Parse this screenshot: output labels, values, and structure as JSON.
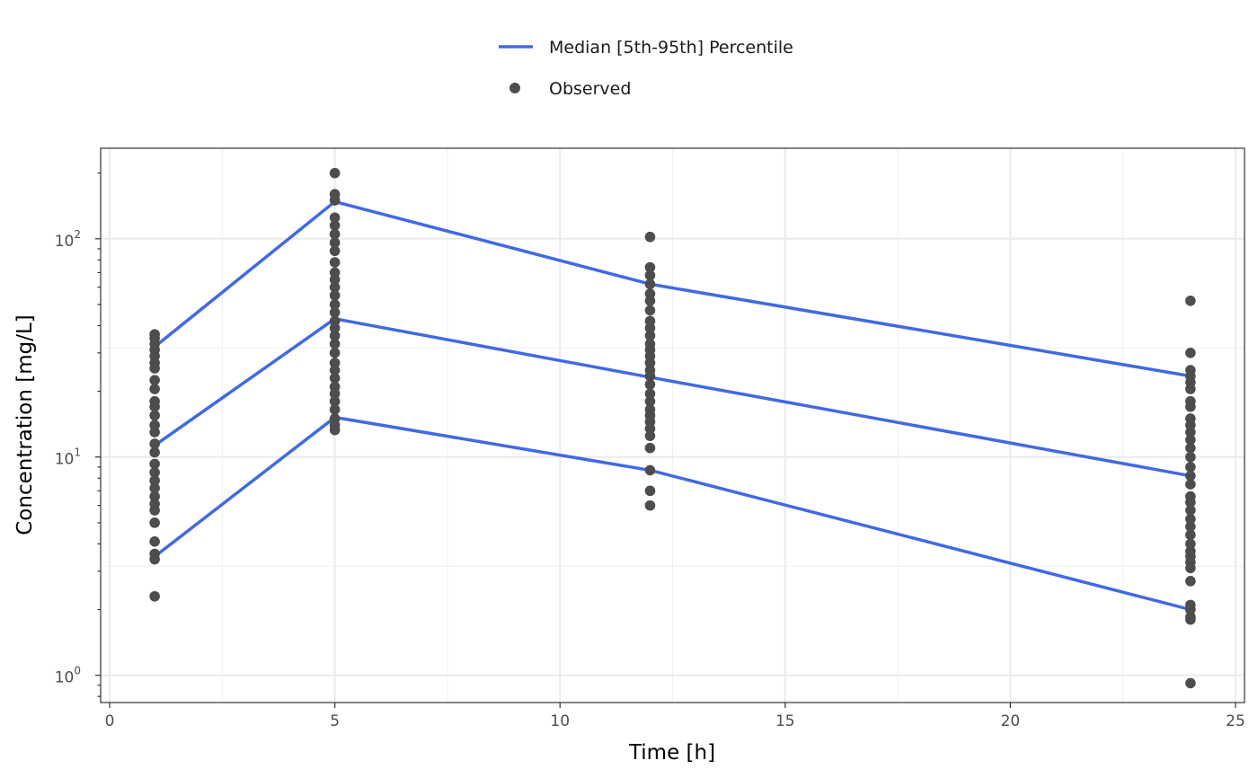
{
  "chart_data": {
    "type": "line",
    "xlabel": "Time [h]",
    "ylabel": "Concentration [mg/L]",
    "xlim": [
      -0.2,
      25.2
    ],
    "ylim": [
      0.75,
      260
    ],
    "yscale": "log10",
    "x_ticks": [
      0,
      5,
      10,
      15,
      20,
      25
    ],
    "x_tick_labels": [
      "0",
      "5",
      "10",
      "15",
      "20",
      "25"
    ],
    "y_ticks": [
      1,
      10,
      100
    ],
    "y_tick_labels": [
      {
        "base": "10",
        "exp": "0"
      },
      {
        "base": "10",
        "exp": "1"
      },
      {
        "base": "10",
        "exp": "2"
      }
    ],
    "grid": true,
    "legend_position": "top",
    "legend": [
      {
        "label": "Median [5th-95th] Percentile",
        "kind": "line",
        "color": "#4169E1"
      },
      {
        "label": "Observed",
        "kind": "point",
        "color": "#4D4D4D"
      }
    ],
    "series": [
      {
        "role": "percentile-95th",
        "color": "#4169E1",
        "x": [
          1,
          5,
          12,
          24
        ],
        "y": [
          32,
          148,
          62,
          23.5
        ]
      },
      {
        "role": "median",
        "color": "#4169E1",
        "x": [
          1,
          5,
          12,
          24
        ],
        "y": [
          11.3,
          43,
          23.2,
          8.2
        ]
      },
      {
        "role": "percentile-5th",
        "color": "#4169E1",
        "x": [
          1,
          5,
          12,
          24
        ],
        "y": [
          3.5,
          15.2,
          8.7,
          2.0
        ]
      }
    ],
    "observed": {
      "color": "#4D4D4D",
      "points": [
        [
          1,
          36.5
        ],
        [
          1,
          35
        ],
        [
          1,
          33
        ],
        [
          1,
          31
        ],
        [
          1,
          29
        ],
        [
          1,
          27
        ],
        [
          1,
          25.5
        ],
        [
          1,
          22.5
        ],
        [
          1,
          20.5
        ],
        [
          1,
          18
        ],
        [
          1,
          17
        ],
        [
          1,
          15.5
        ],
        [
          1,
          14
        ],
        [
          1,
          13
        ],
        [
          1,
          11.5
        ],
        [
          1,
          10.5
        ],
        [
          1,
          9.3
        ],
        [
          1,
          8.5
        ],
        [
          1,
          7.8
        ],
        [
          1,
          7.2
        ],
        [
          1,
          6.6
        ],
        [
          1,
          6.1
        ],
        [
          1,
          5.7
        ],
        [
          1,
          5.0
        ],
        [
          1,
          4.1
        ],
        [
          1,
          3.6
        ],
        [
          1,
          3.4
        ],
        [
          1,
          2.3
        ],
        [
          5,
          200
        ],
        [
          5,
          160
        ],
        [
          5,
          150
        ],
        [
          5,
          125
        ],
        [
          5,
          115
        ],
        [
          5,
          105
        ],
        [
          5,
          96
        ],
        [
          5,
          88
        ],
        [
          5,
          78
        ],
        [
          5,
          70
        ],
        [
          5,
          65
        ],
        [
          5,
          60
        ],
        [
          5,
          55
        ],
        [
          5,
          50
        ],
        [
          5,
          46
        ],
        [
          5,
          42
        ],
        [
          5,
          39
        ],
        [
          5,
          36
        ],
        [
          5,
          33
        ],
        [
          5,
          30
        ],
        [
          5,
          27
        ],
        [
          5,
          25
        ],
        [
          5,
          23
        ],
        [
          5,
          21
        ],
        [
          5,
          19.5
        ],
        [
          5,
          18
        ],
        [
          5,
          16.5
        ],
        [
          5,
          15
        ],
        [
          5,
          14
        ],
        [
          5,
          13.3
        ],
        [
          12,
          102
        ],
        [
          12,
          74
        ],
        [
          12,
          68
        ],
        [
          12,
          62
        ],
        [
          12,
          56
        ],
        [
          12,
          52
        ],
        [
          12,
          47
        ],
        [
          12,
          42
        ],
        [
          12,
          39
        ],
        [
          12,
          36
        ],
        [
          12,
          33
        ],
        [
          12,
          31
        ],
        [
          12,
          29
        ],
        [
          12,
          27
        ],
        [
          12,
          25
        ],
        [
          12,
          23.5
        ],
        [
          12,
          21.5
        ],
        [
          12,
          19.5
        ],
        [
          12,
          18
        ],
        [
          12,
          16.5
        ],
        [
          12,
          15.5
        ],
        [
          12,
          14.5
        ],
        [
          12,
          13.5
        ],
        [
          12,
          12.5
        ],
        [
          12,
          11
        ],
        [
          12,
          8.7
        ],
        [
          12,
          7.0
        ],
        [
          12,
          6.0
        ],
        [
          24,
          52
        ],
        [
          24,
          30
        ],
        [
          24,
          25
        ],
        [
          24,
          23.5
        ],
        [
          24,
          22
        ],
        [
          24,
          20.5
        ],
        [
          24,
          18
        ],
        [
          24,
          17
        ],
        [
          24,
          15
        ],
        [
          24,
          14
        ],
        [
          24,
          13
        ],
        [
          24,
          12
        ],
        [
          24,
          11
        ],
        [
          24,
          10
        ],
        [
          24,
          9.0
        ],
        [
          24,
          8.2
        ],
        [
          24,
          7.5
        ],
        [
          24,
          6.6
        ],
        [
          24,
          6.2
        ],
        [
          24,
          5.7
        ],
        [
          24,
          5.2
        ],
        [
          24,
          4.8
        ],
        [
          24,
          4.4
        ],
        [
          24,
          4.0
        ],
        [
          24,
          3.7
        ],
        [
          24,
          3.5
        ],
        [
          24,
          3.3
        ],
        [
          24,
          3.1
        ],
        [
          24,
          2.7
        ],
        [
          24,
          2.1
        ],
        [
          24,
          2.0
        ],
        [
          24,
          1.85
        ],
        [
          24,
          1.8
        ],
        [
          24,
          0.92
        ]
      ]
    }
  }
}
